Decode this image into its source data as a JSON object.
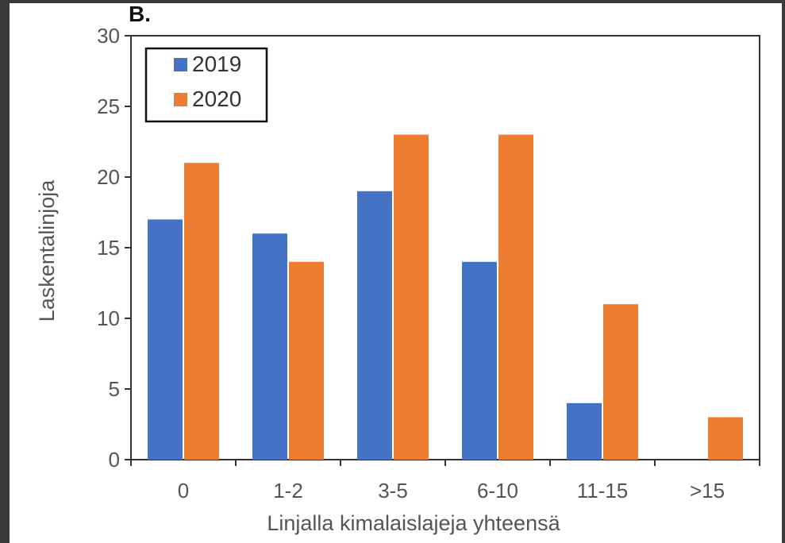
{
  "chart_data": {
    "type": "bar",
    "panel_label": "B.",
    "categories": [
      "0",
      "1-2",
      "3-5",
      "6-10",
      "11-15",
      ">15"
    ],
    "series": [
      {
        "name": "2019",
        "color": "#4472C4",
        "values": [
          17,
          16,
          19,
          14,
          4,
          0
        ]
      },
      {
        "name": "2020",
        "color": "#ED7D31",
        "values": [
          21,
          14,
          23,
          23,
          11,
          3
        ]
      }
    ],
    "xlabel": "Linjalla kimalaislajeja yhteensä",
    "ylabel": "Laskentalinjoja",
    "ylim": [
      0,
      30
    ],
    "yticks": [
      "0",
      "5",
      "10",
      "15",
      "20",
      "25",
      "30"
    ],
    "grid": false,
    "legend_position": "top-left"
  }
}
